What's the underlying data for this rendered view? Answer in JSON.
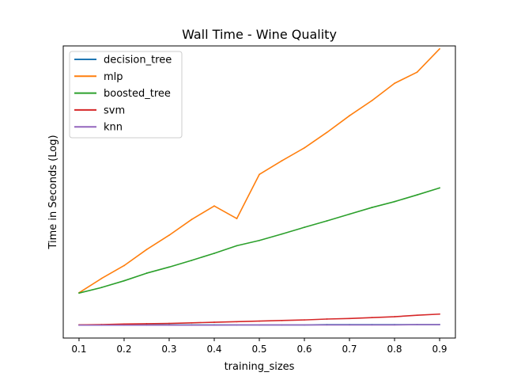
{
  "chart_data": {
    "type": "line",
    "title": "Wall Time - Wine Quality",
    "xlabel": "training_sizes",
    "ylabel": "Time in Seconds (Log)",
    "xlim": [
      0.065,
      0.935
    ],
    "ylim": [
      0,
      100
    ],
    "x_ticks": [
      "0.1",
      "0.2",
      "0.3",
      "0.4",
      "0.5",
      "0.6",
      "0.7",
      "0.8",
      "0.9"
    ],
    "x": [
      0.1,
      0.15,
      0.2,
      0.25,
      0.3,
      0.35,
      0.4,
      0.45,
      0.5,
      0.55,
      0.6,
      0.65,
      0.7,
      0.75,
      0.8,
      0.85,
      0.9
    ],
    "y_ticks_shown": false,
    "grid": false,
    "legend_position": "upper-left",
    "series": [
      {
        "name": "decision_tree",
        "color": "#1f77b4",
        "values": [
          4.5,
          4.5,
          4.5,
          4.5,
          4.5,
          4.5,
          4.5,
          4.5,
          4.5,
          4.5,
          4.5,
          4.6,
          4.6,
          4.6,
          4.6,
          4.6,
          4.6
        ]
      },
      {
        "name": "mlp",
        "color": "#ff7f0e",
        "values": [
          15.5,
          20.4,
          24.8,
          30.3,
          35.2,
          40.6,
          45.2,
          40.9,
          56.0,
          60.7,
          65.1,
          70.4,
          76.1,
          81.3,
          87.2,
          91.0,
          99.0
        ]
      },
      {
        "name": "boosted_tree",
        "color": "#2ca02c",
        "values": [
          15.4,
          17.3,
          19.6,
          22.2,
          24.3,
          26.6,
          29.0,
          31.6,
          33.4,
          35.6,
          37.9,
          40.1,
          42.4,
          44.7,
          46.7,
          49.0,
          51.4
        ]
      },
      {
        "name": "svm",
        "color": "#d62728",
        "values": [
          4.5,
          4.6,
          4.8,
          4.9,
          5.0,
          5.2,
          5.4,
          5.6,
          5.8,
          6.0,
          6.2,
          6.5,
          6.7,
          7.0,
          7.3,
          7.8,
          8.2
        ]
      },
      {
        "name": "knn",
        "color": "#9467bd",
        "values": [
          4.4,
          4.4,
          4.4,
          4.4,
          4.4,
          4.4,
          4.4,
          4.5,
          4.5,
          4.5,
          4.5,
          4.5,
          4.5,
          4.5,
          4.5,
          4.6,
          4.6
        ]
      }
    ]
  }
}
